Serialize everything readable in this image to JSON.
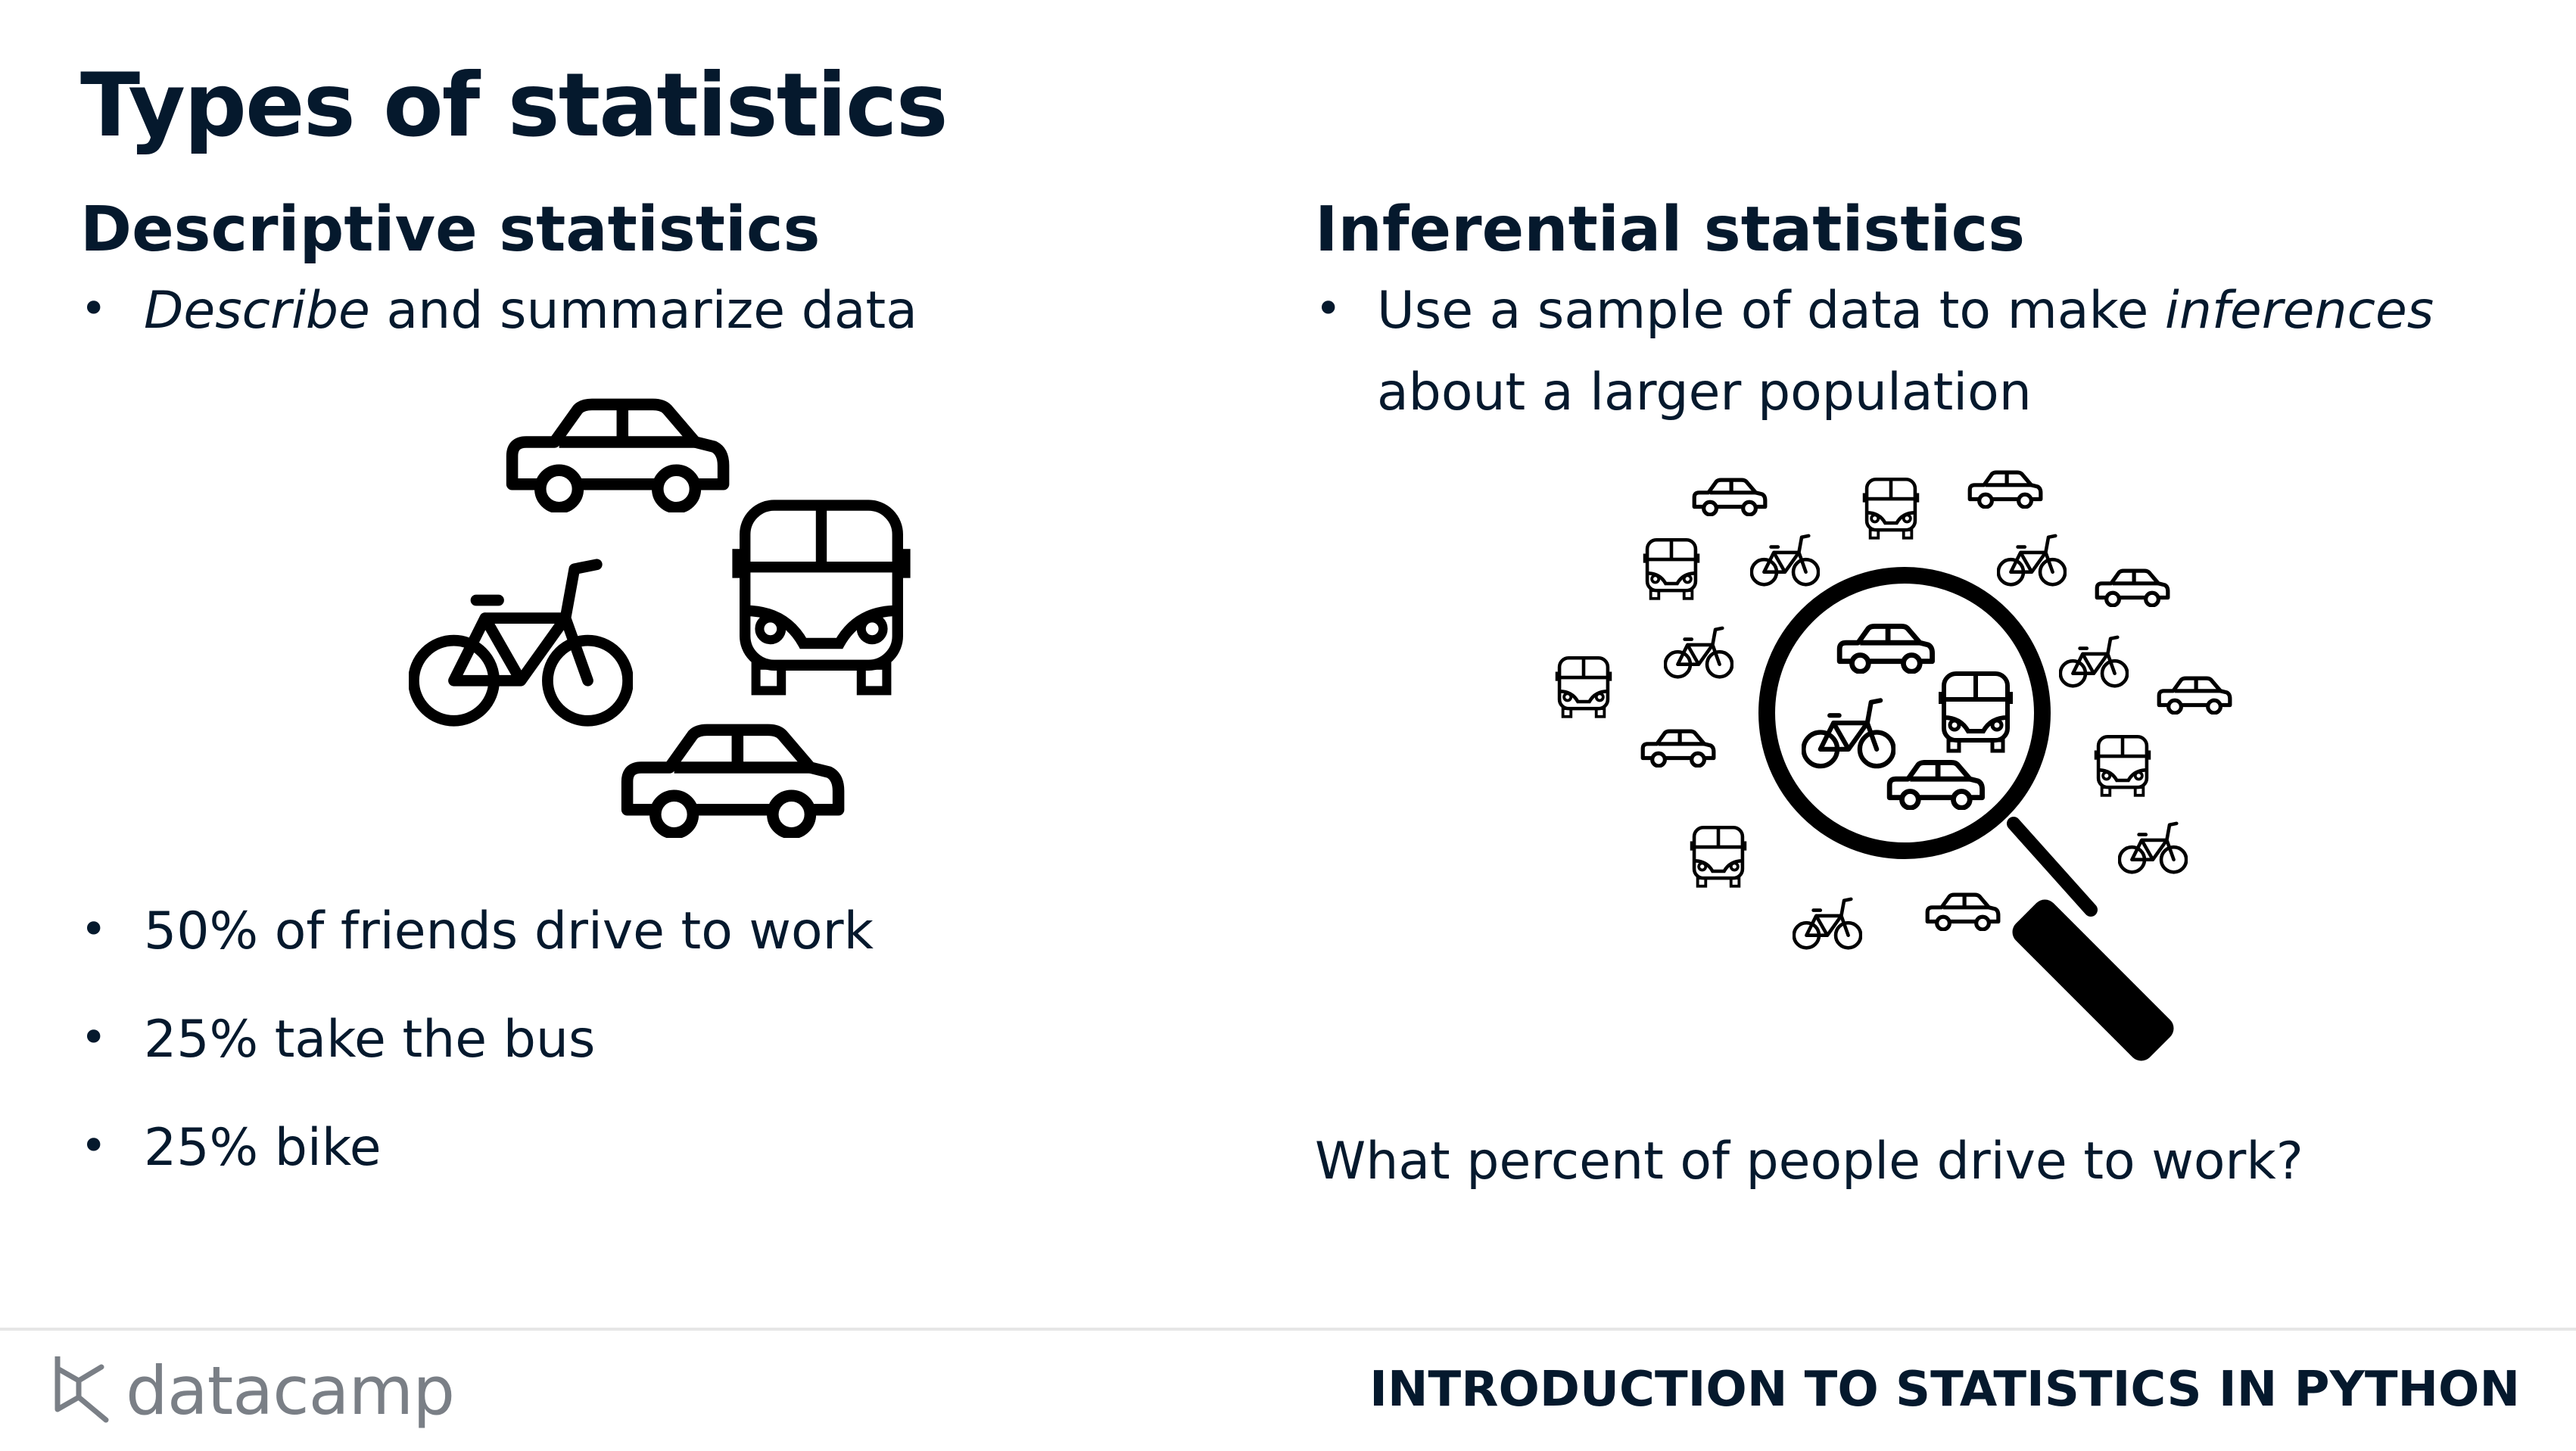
{
  "slide": {
    "title": "Types of statistics"
  },
  "descriptive": {
    "heading": "Descriptive statistics",
    "intro_italic": "Describe",
    "intro_rest": " and summarize data",
    "points": [
      "50% of friends drive to work",
      "25% take the bus",
      "25% bike"
    ]
  },
  "inferential": {
    "heading": "Inferential statistics",
    "intro_line1_start": "Use a sample of data to make ",
    "intro_line1_italic": "inferences",
    "intro_line2": "about a larger population",
    "question": "What percent of people drive to work?"
  },
  "footer": {
    "brand": "datacamp",
    "course": "INTRODUCTION TO STATISTICS IN PYTHON"
  },
  "icons": {
    "left_illustration": [
      "car-icon",
      "bus-icon",
      "bicycle-icon",
      "car-icon"
    ],
    "right_illustration": [
      "magnifying-glass-icon",
      "car-icon",
      "bus-icon",
      "bicycle-icon"
    ]
  },
  "colors": {
    "text": "#05192d",
    "brand_gray": "#7a7f86",
    "background": "#ffffff"
  }
}
